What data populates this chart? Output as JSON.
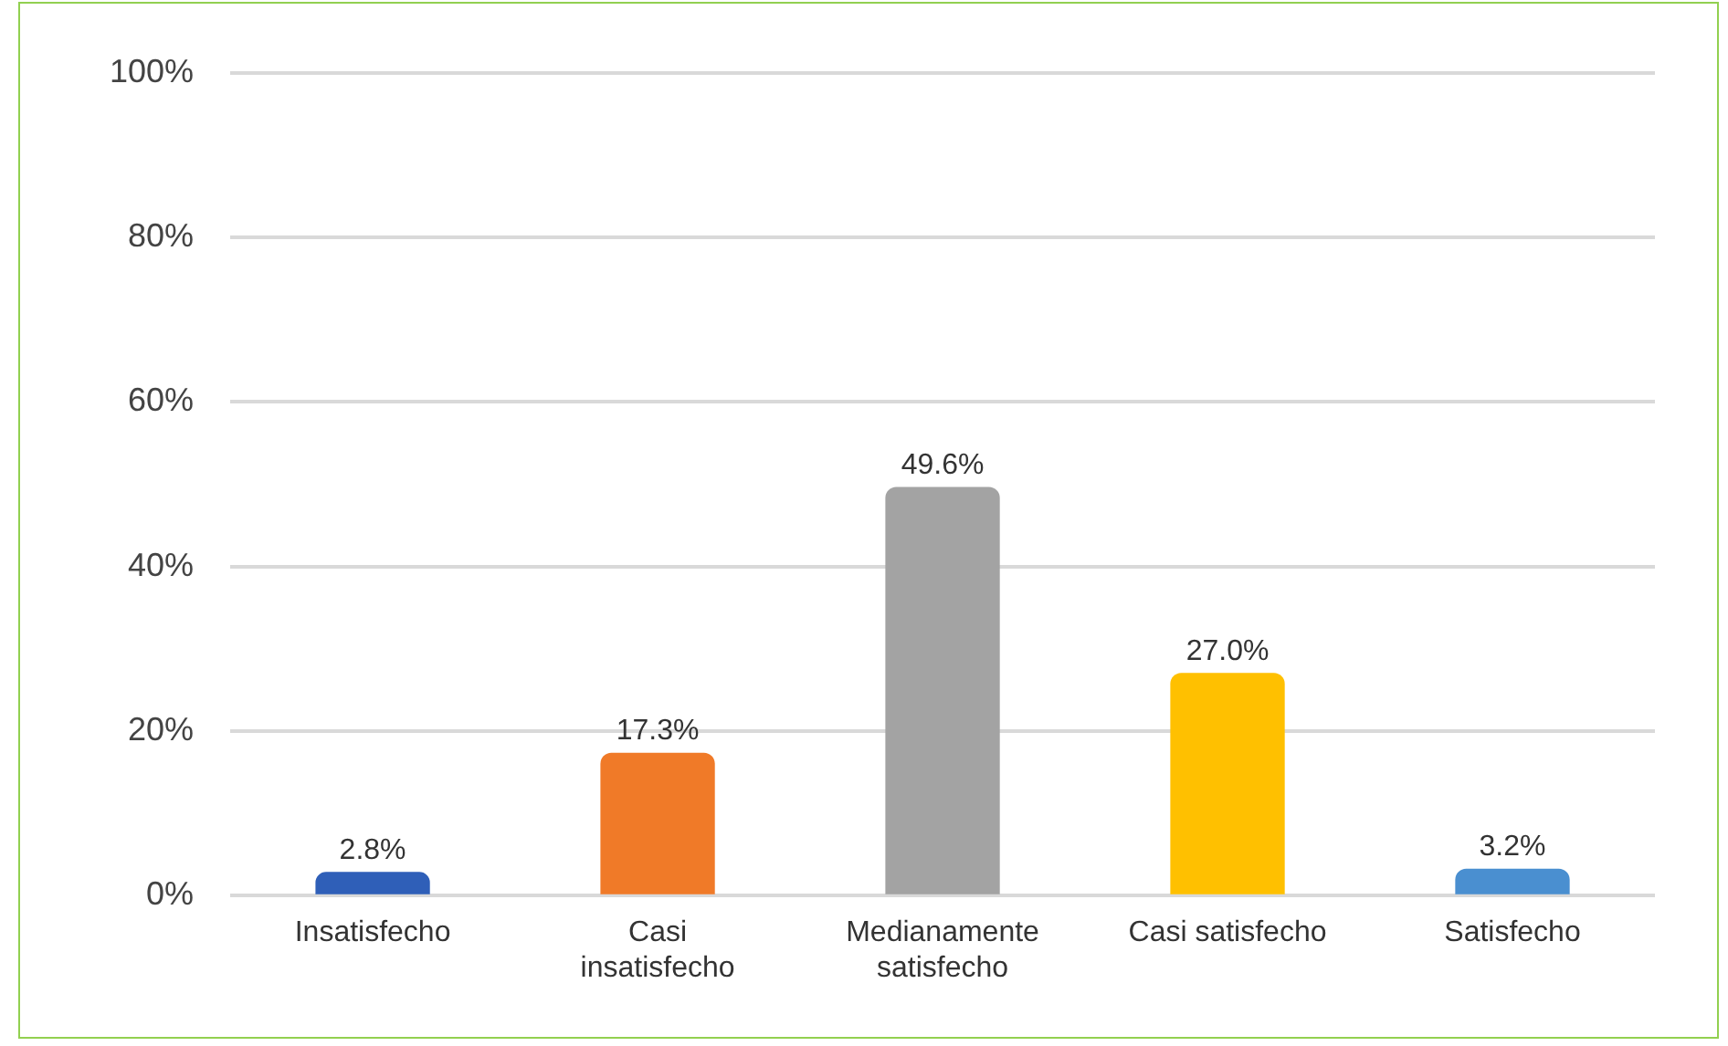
{
  "chart_data": {
    "type": "bar",
    "categories": [
      "Insatisfecho",
      "Casi insatisfecho",
      "Medianamente satisfecho",
      "Casi satisfecho",
      "Satisfecho"
    ],
    "values": [
      2.8,
      17.3,
      49.6,
      27.0,
      3.2
    ],
    "colors": [
      "#2f5fb8",
      "#f07a28",
      "#a3a3a3",
      "#ffc000",
      "#4a8fd0"
    ],
    "value_labels": [
      "2.8%",
      "17.3%",
      "49.6%",
      "27.0%",
      "3.2%"
    ],
    "ylim": [
      0,
      100
    ],
    "yticks": [
      {
        "value": 0,
        "label": "0%"
      },
      {
        "value": 20,
        "label": "20%"
      },
      {
        "value": 40,
        "label": "40%"
      },
      {
        "value": 60,
        "label": "60%"
      },
      {
        "value": 80,
        "label": "80%"
      },
      {
        "value": 100,
        "label": "100%"
      }
    ],
    "grid": "y",
    "legend": false
  }
}
